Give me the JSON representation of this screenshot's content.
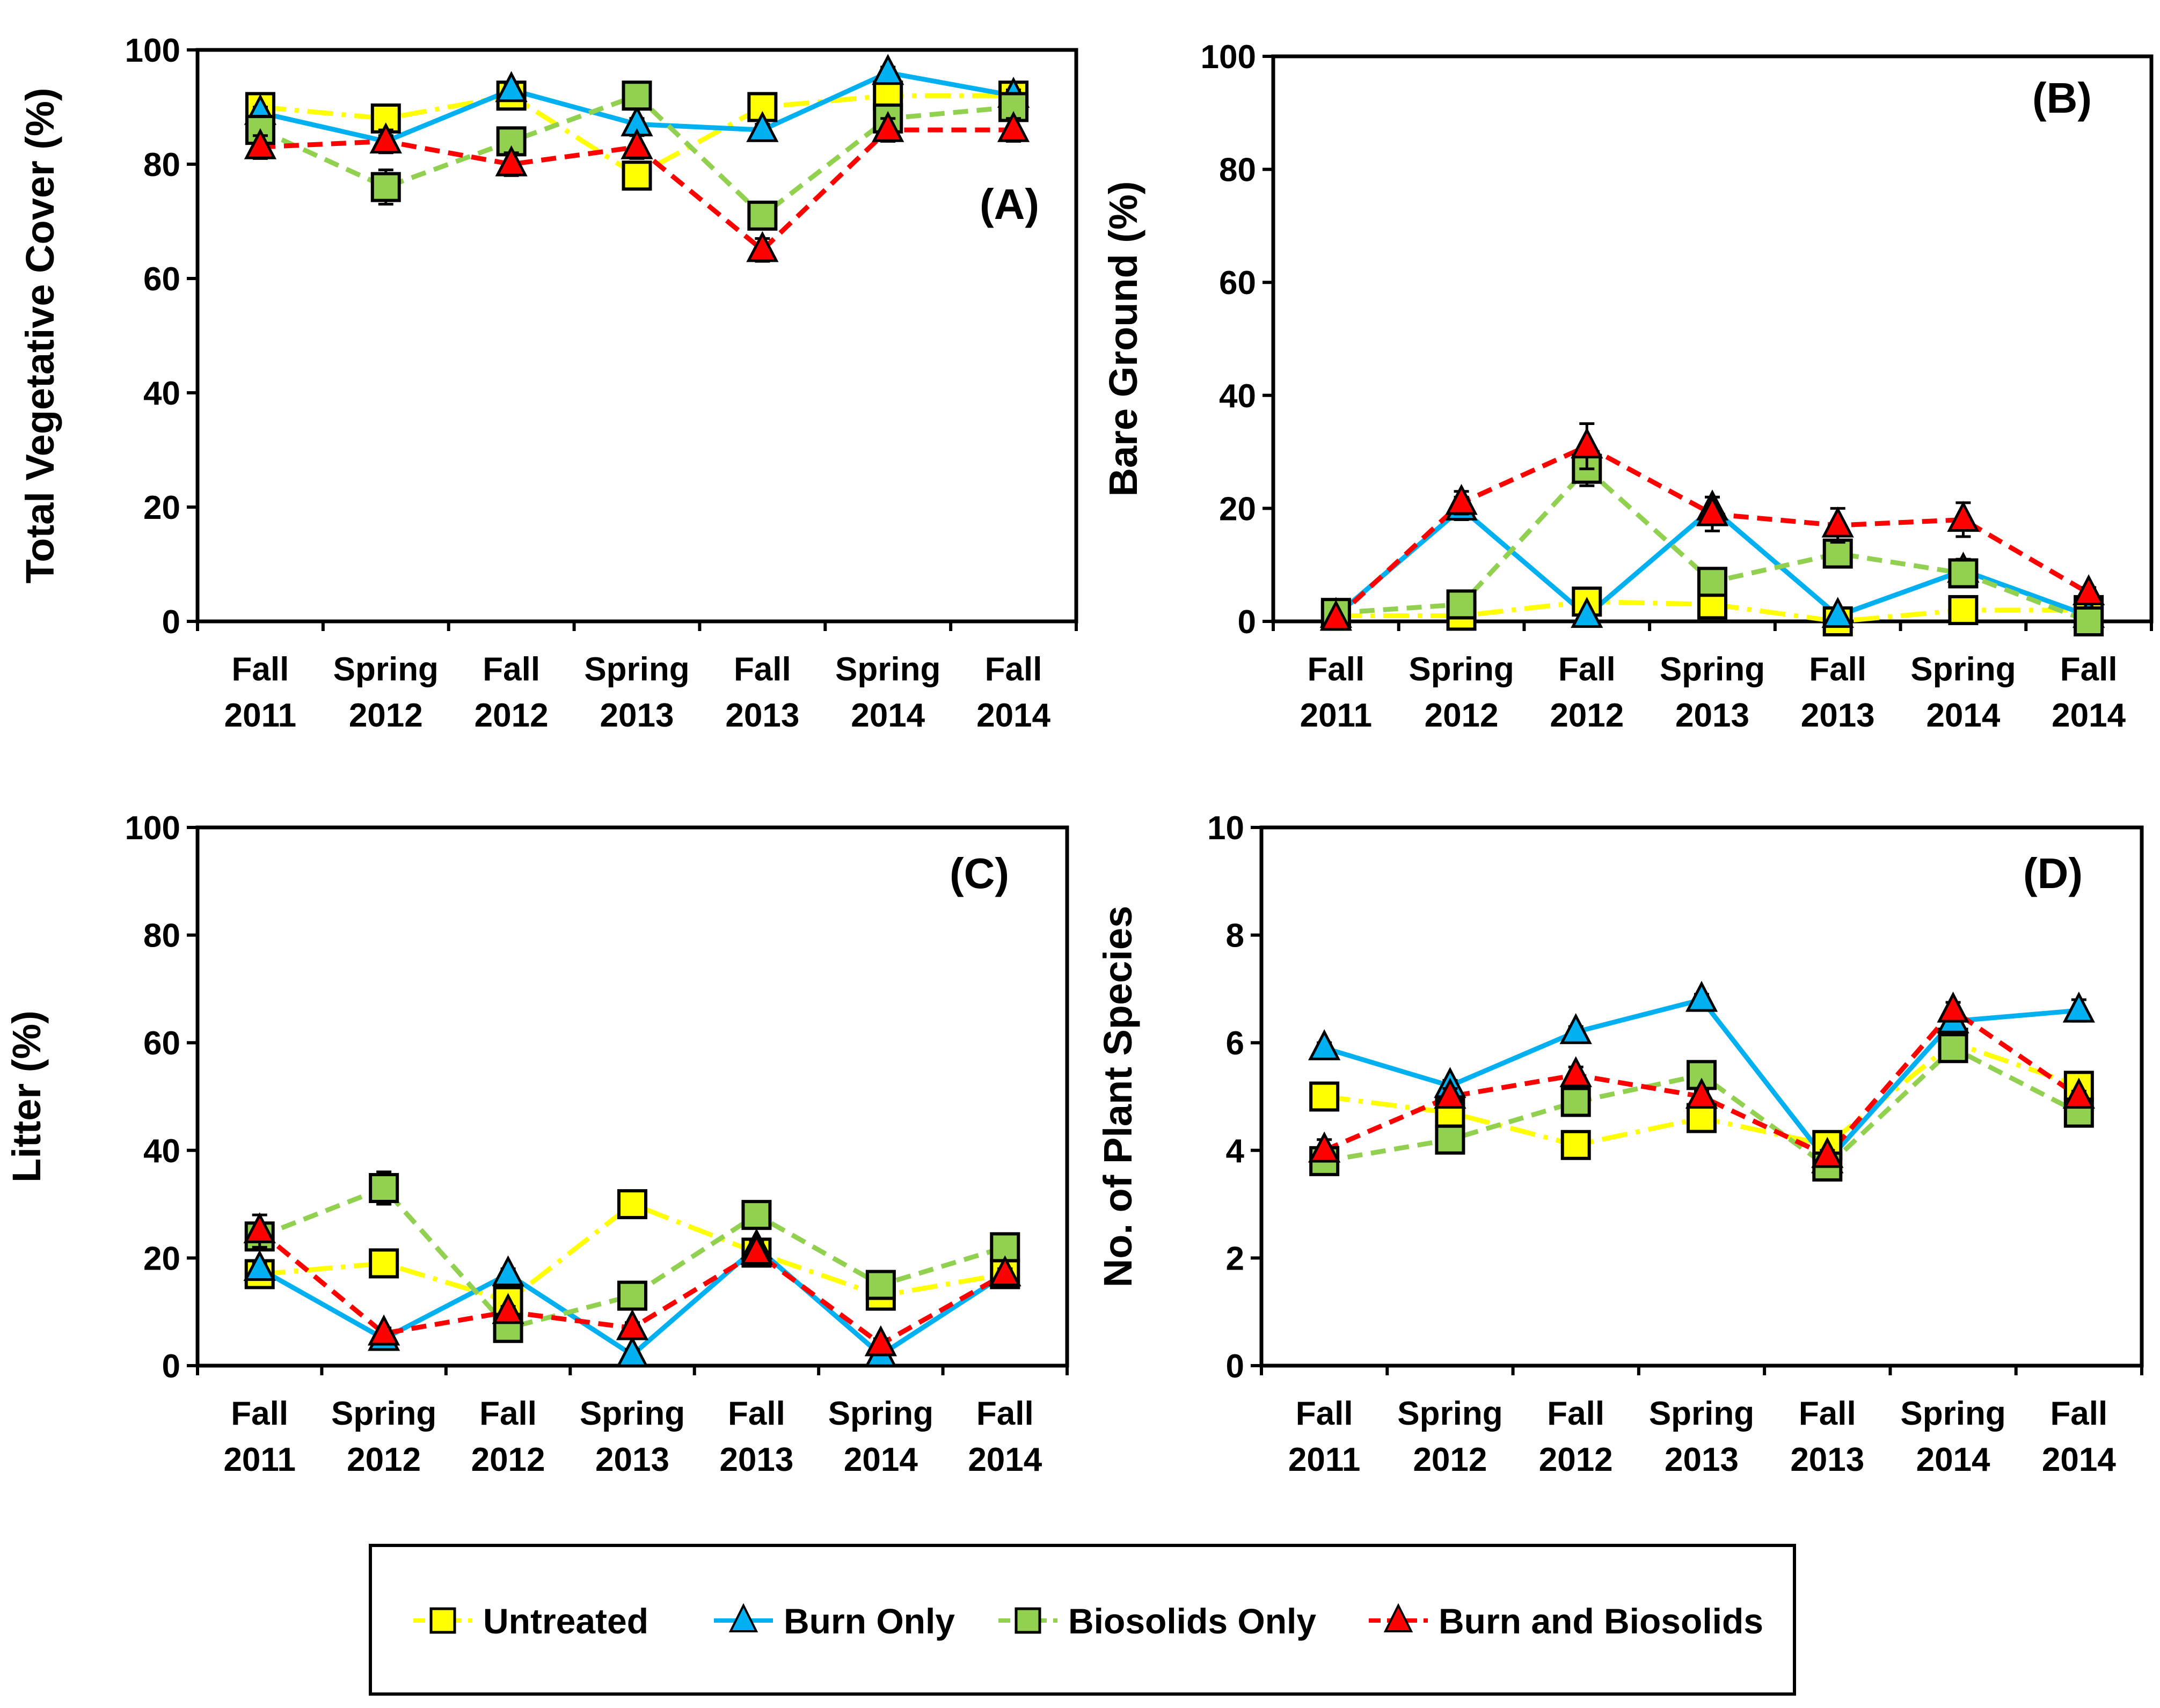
{
  "colors": {
    "untreated": "#FFFF00",
    "burn_only": "#00B0F0",
    "biosolids_only": "#92D050",
    "burn_and_biosolids": "#FF0000",
    "axis": "#000000",
    "marker_outline": "#000000"
  },
  "legend": {
    "items": [
      {
        "key": "untreated",
        "label": "Untreated",
        "marker": "square",
        "dash": "dashdot"
      },
      {
        "key": "burn_only",
        "label": "Burn Only",
        "marker": "triangle",
        "dash": "solid"
      },
      {
        "key": "biosolids_only",
        "label": "Biosolids Only",
        "marker": "square",
        "dash": "dash"
      },
      {
        "key": "burn_and_biosolids",
        "label": "Burn and Biosolids",
        "marker": "triangle",
        "dash": "dash"
      }
    ]
  },
  "chart_data": [
    {
      "type": "line",
      "panel_label": "(A)",
      "title": "",
      "xlabel": "",
      "ylabel": "Total Vegetative Cover (%)",
      "categories": [
        [
          "Fall",
          "2011"
        ],
        [
          "Spring",
          "2012"
        ],
        [
          "Fall",
          "2012"
        ],
        [
          "Spring",
          "2013"
        ],
        [
          "Fall",
          "2013"
        ],
        [
          "Spring",
          "2014"
        ],
        [
          "Fall",
          "2014"
        ]
      ],
      "ylim": [
        0,
        100
      ],
      "yticks": [
        0,
        20,
        40,
        60,
        80,
        100
      ],
      "series": [
        {
          "key": "untreated",
          "name": "Untreated",
          "values": [
            90,
            88,
            92,
            78,
            90,
            92,
            92
          ],
          "errors": [
            1,
            2,
            1,
            2,
            1,
            2,
            1
          ]
        },
        {
          "key": "burn_only",
          "name": "Burn Only",
          "values": [
            89,
            84,
            93,
            87,
            86,
            96,
            92
          ],
          "errors": [
            1,
            1,
            1,
            1,
            1,
            1,
            1
          ]
        },
        {
          "key": "biosolids_only",
          "name": "Biosolids Only",
          "values": [
            86,
            76,
            84,
            92,
            71,
            88,
            90
          ],
          "errors": [
            2,
            3,
            2,
            2,
            2,
            2,
            2
          ]
        },
        {
          "key": "burn_and_biosolids",
          "name": "Burn and Biosolids",
          "values": [
            83,
            84,
            80,
            83,
            65,
            86,
            86
          ],
          "errors": [
            2,
            2,
            2,
            2,
            2,
            2,
            2
          ]
        }
      ]
    },
    {
      "type": "line",
      "panel_label": "(B)",
      "title": "",
      "xlabel": "",
      "ylabel": "Bare Ground (%)",
      "categories": [
        [
          "Fall",
          "2011"
        ],
        [
          "Spring",
          "2012"
        ],
        [
          "Fall",
          "2012"
        ],
        [
          "Spring",
          "2013"
        ],
        [
          "Fall",
          "2013"
        ],
        [
          "Spring",
          "2014"
        ],
        [
          "Fall",
          "2014"
        ]
      ],
      "ylim": [
        0,
        100
      ],
      "yticks": [
        0,
        20,
        40,
        60,
        80,
        100
      ],
      "series": [
        {
          "key": "untreated",
          "name": "Untreated",
          "values": [
            1,
            1,
            3.5,
            3,
            0,
            2,
            2
          ],
          "errors": [
            0.5,
            0.5,
            1,
            1,
            0.5,
            0.5,
            0.5
          ]
        },
        {
          "key": "burn_only",
          "name": "Burn Only",
          "values": [
            1,
            20,
            1,
            20,
            1,
            9,
            1
          ],
          "errors": [
            0.5,
            2,
            0.5,
            2,
            0.5,
            2,
            0.5
          ]
        },
        {
          "key": "biosolids_only",
          "name": "Biosolids Only",
          "values": [
            1.5,
            3,
            27,
            7,
            12,
            8.5,
            0
          ],
          "errors": [
            1,
            1,
            3,
            2,
            2,
            2,
            0.5
          ]
        },
        {
          "key": "burn_and_biosolids",
          "name": "Burn and Biosolids",
          "values": [
            0.5,
            21,
            31,
            19,
            17,
            18,
            5
          ],
          "errors": [
            0.5,
            2,
            4,
            3,
            3,
            3,
            1
          ]
        }
      ]
    },
    {
      "type": "line",
      "panel_label": "(C)",
      "title": "",
      "xlabel": "",
      "ylabel": "Litter (%)",
      "categories": [
        [
          "Fall",
          "2011"
        ],
        [
          "Spring",
          "2012"
        ],
        [
          "Fall",
          "2012"
        ],
        [
          "Spring",
          "2013"
        ],
        [
          "Fall",
          "2013"
        ],
        [
          "Spring",
          "2014"
        ],
        [
          "Fall",
          "2014"
        ]
      ],
      "ylim": [
        0,
        100
      ],
      "yticks": [
        0,
        20,
        40,
        60,
        80,
        100
      ],
      "series": [
        {
          "key": "untreated",
          "name": "Untreated",
          "values": [
            17,
            19,
            12,
            30,
            21,
            13,
            17
          ],
          "errors": [
            1,
            1,
            1,
            2,
            1,
            1,
            1
          ]
        },
        {
          "key": "burn_only",
          "name": "Burn Only",
          "values": [
            18,
            5,
            17,
            2,
            22,
            2,
            17
          ],
          "errors": [
            1,
            1,
            1,
            1,
            1,
            1,
            1
          ]
        },
        {
          "key": "biosolids_only",
          "name": "Biosolids Only",
          "values": [
            24,
            33,
            7,
            13,
            28,
            15,
            22
          ],
          "errors": [
            2,
            3,
            1,
            2,
            2,
            2,
            2
          ]
        },
        {
          "key": "burn_and_biosolids",
          "name": "Burn and Biosolids",
          "values": [
            25,
            6,
            10,
            7,
            21,
            4,
            17
          ],
          "errors": [
            3,
            1,
            1,
            1,
            1,
            1,
            1
          ]
        }
      ]
    },
    {
      "type": "line",
      "panel_label": "(D)",
      "title": "",
      "xlabel": "",
      "ylabel": "No. of Plant Species",
      "categories": [
        [
          "Fall",
          "2011"
        ],
        [
          "Spring",
          "2012"
        ],
        [
          "Fall",
          "2012"
        ],
        [
          "Spring",
          "2013"
        ],
        [
          "Fall",
          "2013"
        ],
        [
          "Spring",
          "2014"
        ],
        [
          "Fall",
          "2014"
        ]
      ],
      "ylim": [
        0,
        10
      ],
      "yticks": [
        0,
        2,
        4,
        6,
        8,
        10
      ],
      "series": [
        {
          "key": "untreated",
          "name": "Untreated",
          "values": [
            5.0,
            4.7,
            4.1,
            4.6,
            4.1,
            6.0,
            5.2
          ],
          "errors": [
            0.1,
            0.1,
            0.1,
            0.15,
            0.1,
            0.15,
            0.1
          ]
        },
        {
          "key": "burn_only",
          "name": "Burn Only",
          "values": [
            5.9,
            5.2,
            6.2,
            6.8,
            3.8,
            6.4,
            6.6
          ],
          "errors": [
            0.1,
            0.1,
            0.1,
            0.1,
            0.1,
            0.15,
            0.2
          ]
        },
        {
          "key": "biosolids_only",
          "name": "Biosolids Only",
          "values": [
            3.8,
            4.2,
            4.9,
            5.4,
            3.7,
            5.9,
            4.7
          ],
          "errors": [
            0.2,
            0.2,
            0.1,
            0.1,
            0.1,
            0.15,
            0.1
          ]
        },
        {
          "key": "burn_and_biosolids",
          "name": "Burn and Biosolids",
          "values": [
            4.0,
            5.0,
            5.4,
            5.0,
            3.9,
            6.6,
            5.0
          ],
          "errors": [
            0.2,
            0.15,
            0.15,
            0.1,
            0.1,
            0.15,
            0.1
          ]
        }
      ]
    }
  ]
}
